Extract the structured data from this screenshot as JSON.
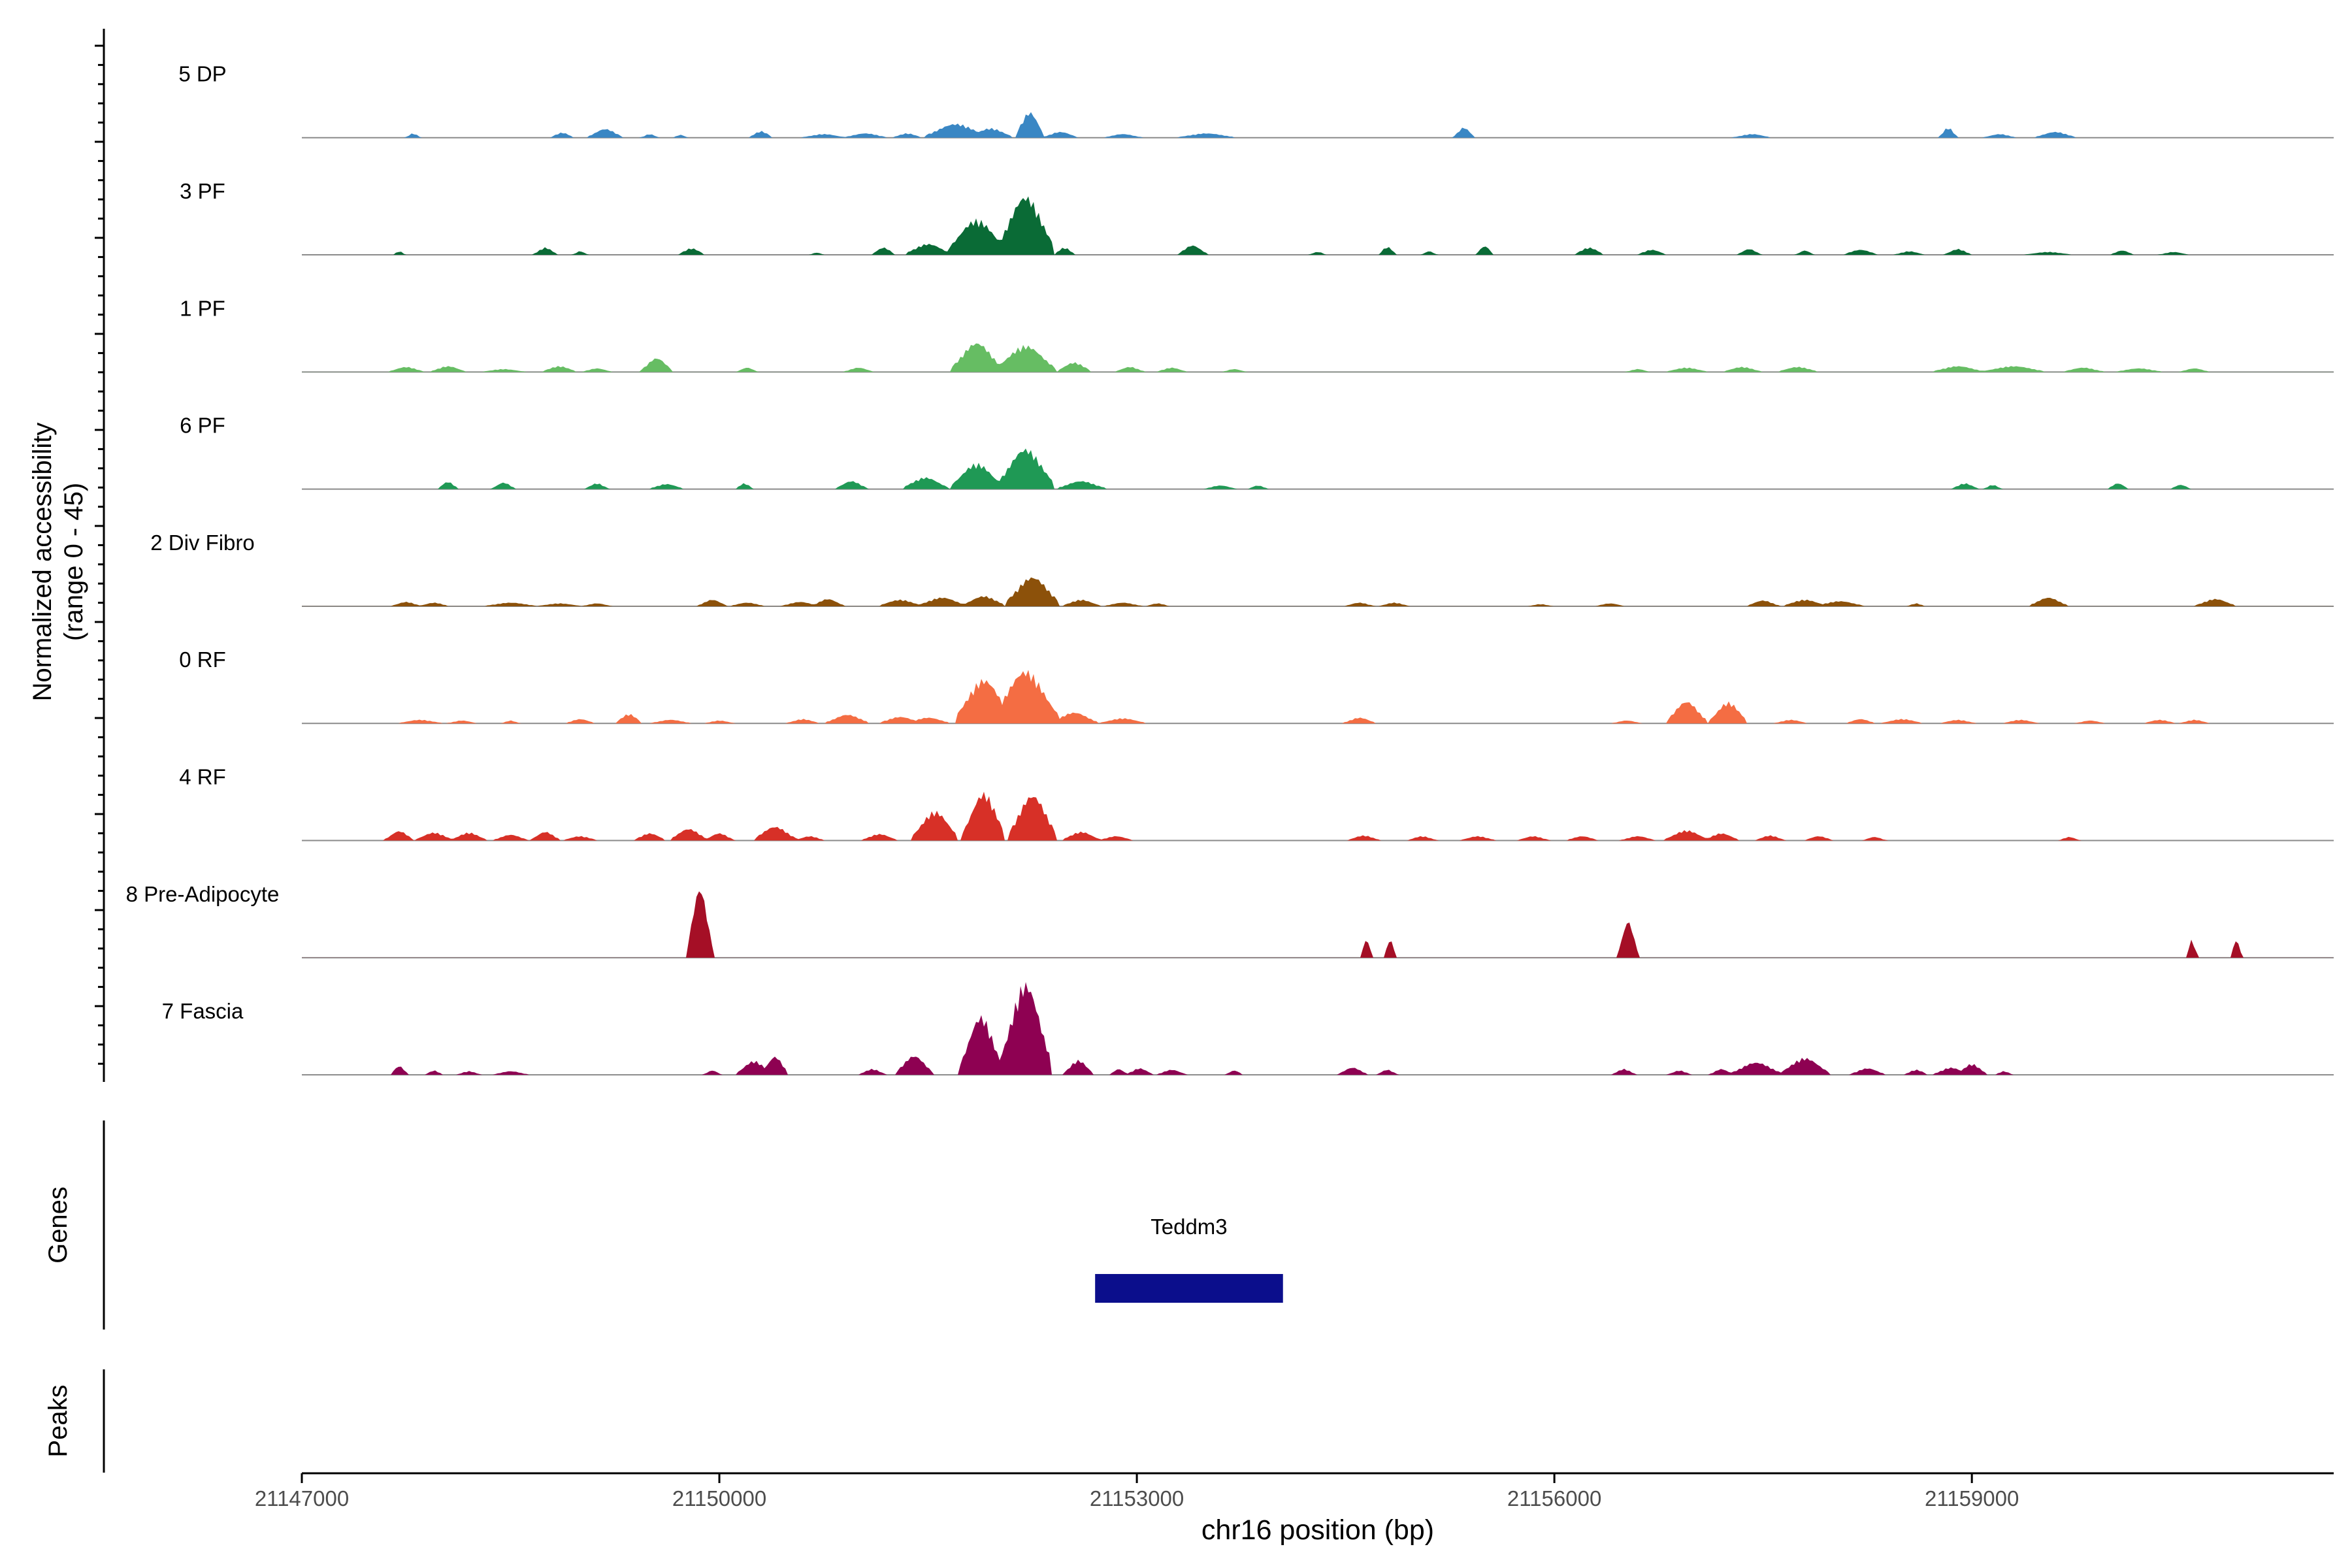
{
  "chart_data": {
    "type": "area",
    "subtype": "genome-coverage-track",
    "ylabel_line1": "Normalized accessibility",
    "ylabel_line2": "(range 0 - 45)",
    "y_range": [
      0,
      45
    ],
    "xlabel": "chr16 position (bp)",
    "xlim": [
      21147000,
      21161600
    ],
    "x_ticks": [
      21147000,
      21150000,
      21153000,
      21156000,
      21159000
    ],
    "x_tick_labels": [
      "21147000",
      "21150000",
      "21153000",
      "21156000",
      "21159000"
    ],
    "tracks": [
      {
        "name": "5 DP",
        "color": "#3A87C4",
        "peaks": [
          [
            21147800,
            0.6,
            50
          ],
          [
            21148870,
            0.7,
            80
          ],
          [
            21149180,
            1.2,
            120
          ],
          [
            21149500,
            0.5,
            60
          ],
          [
            21149720,
            0.4,
            50
          ],
          [
            21150300,
            0.9,
            80
          ],
          [
            21150750,
            0.5,
            150
          ],
          [
            21151050,
            0.6,
            150
          ],
          [
            21151350,
            0.6,
            100
          ],
          [
            21151700,
            1.9,
            220
          ],
          [
            21151950,
            1.3,
            150
          ],
          [
            21152230,
            3.5,
            100
          ],
          [
            21152450,
            0.8,
            120
          ],
          [
            21152900,
            0.5,
            130
          ],
          [
            21153500,
            0.6,
            200
          ],
          [
            21155350,
            1.4,
            70
          ],
          [
            21157420,
            0.5,
            130
          ],
          [
            21158830,
            1.4,
            60
          ],
          [
            21159200,
            0.5,
            110
          ],
          [
            21159600,
            0.8,
            140
          ]
        ]
      },
      {
        "name": "3 PF",
        "color": "#0A6B36",
        "peaks": [
          [
            21147700,
            0.5,
            40
          ],
          [
            21148750,
            1.0,
            80
          ],
          [
            21149000,
            0.5,
            50
          ],
          [
            21149800,
            0.9,
            90
          ],
          [
            21150700,
            0.3,
            50
          ],
          [
            21151180,
            1.0,
            80
          ],
          [
            21151500,
            1.5,
            160
          ],
          [
            21151850,
            4.8,
            210
          ],
          [
            21152200,
            8.0,
            200
          ],
          [
            21152480,
            1.0,
            70
          ],
          [
            21153400,
            1.3,
            100
          ],
          [
            21154300,
            0.4,
            60
          ],
          [
            21154800,
            1.1,
            60
          ],
          [
            21155100,
            0.5,
            50
          ],
          [
            21155500,
            1.2,
            60
          ],
          [
            21156250,
            1.0,
            100
          ],
          [
            21156700,
            0.7,
            100
          ],
          [
            21157400,
            0.8,
            80
          ],
          [
            21157800,
            0.6,
            60
          ],
          [
            21158200,
            0.7,
            120
          ],
          [
            21158550,
            0.5,
            100
          ],
          [
            21158900,
            0.8,
            90
          ],
          [
            21159550,
            0.4,
            160
          ],
          [
            21160080,
            0.6,
            80
          ],
          [
            21160450,
            0.4,
            100
          ]
        ]
      },
      {
        "name": "1 PF",
        "color": "#66BD63",
        "peaks": [
          [
            21147750,
            0.7,
            120
          ],
          [
            21148050,
            0.8,
            120
          ],
          [
            21148450,
            0.4,
            150
          ],
          [
            21148850,
            0.8,
            120
          ],
          [
            21149120,
            0.5,
            100
          ],
          [
            21149550,
            1.9,
            110
          ],
          [
            21150200,
            0.6,
            70
          ],
          [
            21151000,
            0.6,
            100
          ],
          [
            21151850,
            4.0,
            180
          ],
          [
            21152200,
            3.6,
            210
          ],
          [
            21152550,
            1.3,
            120
          ],
          [
            21152950,
            0.7,
            100
          ],
          [
            21153250,
            0.6,
            100
          ],
          [
            21153700,
            0.4,
            80
          ],
          [
            21156600,
            0.4,
            80
          ],
          [
            21156950,
            0.6,
            140
          ],
          [
            21157350,
            0.7,
            130
          ],
          [
            21157750,
            0.7,
            140
          ],
          [
            21158900,
            0.8,
            180
          ],
          [
            21159300,
            0.8,
            220
          ],
          [
            21159800,
            0.6,
            140
          ],
          [
            21160200,
            0.5,
            160
          ],
          [
            21160600,
            0.5,
            100
          ]
        ]
      },
      {
        "name": "6 PF",
        "color": "#1F9955",
        "peaks": [
          [
            21148050,
            1.0,
            70
          ],
          [
            21148450,
            0.9,
            80
          ],
          [
            21149120,
            0.8,
            80
          ],
          [
            21149620,
            0.7,
            120
          ],
          [
            21150180,
            0.8,
            60
          ],
          [
            21150950,
            1.1,
            110
          ],
          [
            21151480,
            1.6,
            160
          ],
          [
            21151850,
            3.5,
            180
          ],
          [
            21152200,
            5.5,
            200
          ],
          [
            21152600,
            1.1,
            170
          ],
          [
            21153600,
            0.5,
            110
          ],
          [
            21153870,
            0.5,
            70
          ],
          [
            21158950,
            0.8,
            90
          ],
          [
            21159150,
            0.6,
            60
          ],
          [
            21160050,
            0.8,
            70
          ],
          [
            21160500,
            0.6,
            70
          ]
        ]
      },
      {
        "name": "2 Div Fibro",
        "color": "#8C510A",
        "peaks": [
          [
            21147750,
            0.6,
            100
          ],
          [
            21147950,
            0.5,
            100
          ],
          [
            21148500,
            0.5,
            180
          ],
          [
            21148850,
            0.4,
            150
          ],
          [
            21149120,
            0.4,
            100
          ],
          [
            21149950,
            0.9,
            100
          ],
          [
            21150200,
            0.5,
            120
          ],
          [
            21150580,
            0.6,
            130
          ],
          [
            21150780,
            1.0,
            110
          ],
          [
            21151300,
            0.9,
            150
          ],
          [
            21151600,
            1.2,
            170
          ],
          [
            21151900,
            1.4,
            150
          ],
          [
            21152250,
            4.0,
            190
          ],
          [
            21152600,
            0.9,
            130
          ],
          [
            21152900,
            0.5,
            130
          ],
          [
            21153150,
            0.4,
            80
          ],
          [
            21154600,
            0.5,
            100
          ],
          [
            21154850,
            0.5,
            100
          ],
          [
            21155900,
            0.3,
            80
          ],
          [
            21156400,
            0.4,
            100
          ],
          [
            21157500,
            0.8,
            110
          ],
          [
            21157800,
            0.9,
            150
          ],
          [
            21158050,
            0.7,
            170
          ],
          [
            21158600,
            0.4,
            60
          ],
          [
            21159550,
            1.2,
            130
          ],
          [
            21160750,
            1.0,
            140
          ]
        ]
      },
      {
        "name": "0 RF",
        "color": "#F46D43",
        "peaks": [
          [
            21147850,
            0.5,
            150
          ],
          [
            21148150,
            0.4,
            100
          ],
          [
            21148500,
            0.4,
            60
          ],
          [
            21149000,
            0.6,
            100
          ],
          [
            21149350,
            1.3,
            90
          ],
          [
            21149650,
            0.5,
            140
          ],
          [
            21150000,
            0.4,
            100
          ],
          [
            21150600,
            0.6,
            110
          ],
          [
            21150920,
            1.2,
            150
          ],
          [
            21151300,
            0.9,
            150
          ],
          [
            21151500,
            0.8,
            150
          ],
          [
            21151900,
            6.0,
            200
          ],
          [
            21152200,
            7.2,
            230
          ],
          [
            21152550,
            1.5,
            160
          ],
          [
            21152900,
            0.7,
            160
          ],
          [
            21154600,
            0.8,
            110
          ],
          [
            21156520,
            0.4,
            100
          ],
          [
            21156950,
            3.0,
            140
          ],
          [
            21157250,
            2.9,
            130
          ],
          [
            21157700,
            0.5,
            110
          ],
          [
            21158200,
            0.6,
            100
          ],
          [
            21158500,
            0.6,
            140
          ],
          [
            21158900,
            0.5,
            120
          ],
          [
            21159350,
            0.5,
            120
          ],
          [
            21159850,
            0.4,
            100
          ],
          [
            21160350,
            0.5,
            110
          ],
          [
            21160600,
            0.5,
            100
          ]
        ]
      },
      {
        "name": "4 RF",
        "color": "#D73027",
        "peaks": [
          [
            21147700,
            1.3,
            100
          ],
          [
            21147950,
            1.1,
            130
          ],
          [
            21148200,
            1.1,
            120
          ],
          [
            21148500,
            0.8,
            120
          ],
          [
            21148750,
            1.2,
            100
          ],
          [
            21149000,
            0.6,
            120
          ],
          [
            21149500,
            1.0,
            110
          ],
          [
            21149780,
            1.6,
            130
          ],
          [
            21150000,
            1.0,
            100
          ],
          [
            21150400,
            1.9,
            150
          ],
          [
            21150650,
            0.6,
            100
          ],
          [
            21151150,
            0.9,
            120
          ],
          [
            21151550,
            4.0,
            160
          ],
          [
            21151900,
            6.5,
            150
          ],
          [
            21152250,
            6.2,
            170
          ],
          [
            21152600,
            1.2,
            130
          ],
          [
            21152850,
            0.6,
            120
          ],
          [
            21154630,
            0.7,
            110
          ],
          [
            21155050,
            0.6,
            100
          ],
          [
            21155450,
            0.6,
            120
          ],
          [
            21155850,
            0.6,
            110
          ],
          [
            21156200,
            0.6,
            110
          ],
          [
            21156600,
            0.6,
            120
          ],
          [
            21156950,
            1.4,
            150
          ],
          [
            21157200,
            1.0,
            120
          ],
          [
            21157550,
            0.7,
            100
          ],
          [
            21157900,
            0.6,
            100
          ],
          [
            21158300,
            0.5,
            80
          ],
          [
            21159700,
            0.5,
            70
          ]
        ]
      },
      {
        "name": "8 Pre-Adipocyte",
        "color": "#A50F26",
        "peaks": [
          [
            21149860,
            9.5,
            90
          ],
          [
            21154650,
            2.5,
            40
          ],
          [
            21154820,
            2.5,
            40
          ],
          [
            21156530,
            5.0,
            70
          ],
          [
            21160580,
            2.4,
            40
          ],
          [
            21160900,
            2.4,
            40
          ]
        ]
      },
      {
        "name": "7 Fascia",
        "color": "#8E0152",
        "peaks": [
          [
            21147700,
            1.2,
            60
          ],
          [
            21147950,
            0.6,
            60
          ],
          [
            21148200,
            0.5,
            80
          ],
          [
            21148500,
            0.5,
            120
          ],
          [
            21149950,
            0.6,
            60
          ],
          [
            21150250,
            1.9,
            120
          ],
          [
            21150400,
            2.5,
            90
          ],
          [
            21151100,
            0.8,
            90
          ],
          [
            21151400,
            2.6,
            130
          ],
          [
            21151880,
            8.0,
            150
          ],
          [
            21152200,
            12.5,
            180
          ],
          [
            21152580,
            2.0,
            100
          ],
          [
            21152870,
            0.8,
            60
          ],
          [
            21153020,
            0.9,
            90
          ],
          [
            21153250,
            0.7,
            100
          ],
          [
            21153700,
            0.6,
            60
          ],
          [
            21154550,
            1.0,
            100
          ],
          [
            21154800,
            0.7,
            70
          ],
          [
            21156500,
            0.8,
            80
          ],
          [
            21156900,
            0.6,
            80
          ],
          [
            21157200,
            0.8,
            80
          ],
          [
            21157450,
            1.7,
            180
          ],
          [
            21157800,
            2.3,
            170
          ],
          [
            21158250,
            0.9,
            120
          ],
          [
            21158600,
            0.7,
            80
          ],
          [
            21158850,
            1.0,
            120
          ],
          [
            21159000,
            1.5,
            100
          ],
          [
            21159230,
            0.5,
            60
          ]
        ]
      }
    ],
    "genes": [
      {
        "name": "Teddm3",
        "start": 21152700,
        "end": 21154050,
        "color": "#0B0E8C"
      }
    ],
    "panel_labels": [
      "Genes",
      "Peaks"
    ],
    "peaks_track": []
  }
}
